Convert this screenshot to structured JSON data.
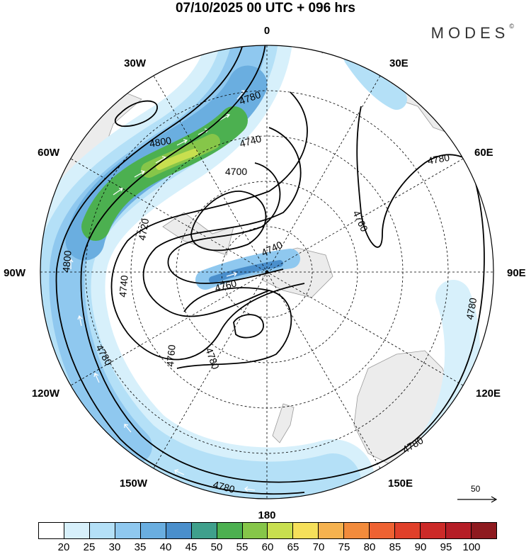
{
  "title": "07/10/2025  00 UTC  + 096 hrs",
  "logo": "MODES",
  "logo_mark": "©",
  "longitude_labels": {
    "top": "0",
    "e30": "30E",
    "e60": "60E",
    "e90": "90E",
    "e120": "120E",
    "e150": "150E",
    "bottom": "180",
    "w150": "150W",
    "w120": "120W",
    "w90": "90W",
    "w60": "60W",
    "w30": "30W"
  },
  "contour_labels": [
    "4780",
    "4800",
    "4740",
    "4700",
    "4720",
    "4740",
    "4760",
    "4740",
    "4760",
    "4780",
    "4760",
    "4780",
    "4780",
    "4780",
    "4780",
    "4800",
    "4780",
    "4780",
    "4780"
  ],
  "reference_vector": "50",
  "colorbar": {
    "colors": [
      "#ffffff",
      "#d7f0fb",
      "#b4e0f7",
      "#8fc8ef",
      "#6aaee0",
      "#4a8fcc",
      "#3fa08c",
      "#4cb050",
      "#86c649",
      "#c8df4f",
      "#f6e05a",
      "#f5b24f",
      "#f28b3c",
      "#ee6232",
      "#e0402a",
      "#cc2a28",
      "#b51d26",
      "#8e1a1f"
    ],
    "labels": [
      "20",
      "25",
      "30",
      "35",
      "40",
      "45",
      "50",
      "55",
      "60",
      "65",
      "70",
      "75",
      "80",
      "85",
      "90",
      "95",
      "100"
    ]
  }
}
